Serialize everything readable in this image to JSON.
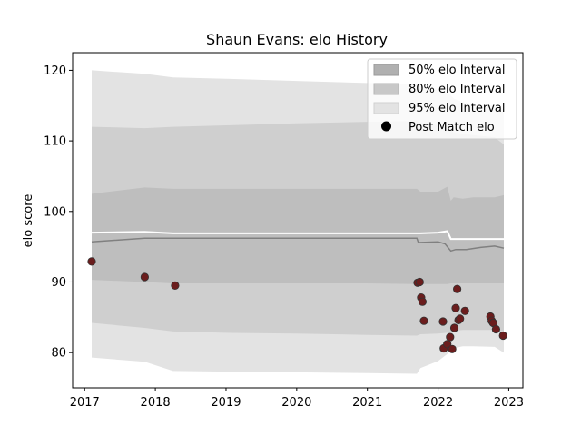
{
  "chart_data": {
    "type": "area",
    "title": "Shaun Evans: elo History",
    "xlabel": "",
    "ylabel": "elo score",
    "xlim": [
      2016.83,
      2023.2
    ],
    "ylim": [
      75,
      122.5
    ],
    "x_ticks": [
      2017,
      2018,
      2019,
      2020,
      2021,
      2022,
      2023
    ],
    "y_ticks": [
      80,
      90,
      100,
      110,
      120
    ],
    "grid": false,
    "legend_position": "top-right",
    "legend": [
      {
        "label": "50% elo Interval",
        "kind": "band",
        "color": "#b0b0b0"
      },
      {
        "label": "80% elo Interval",
        "kind": "band",
        "color": "#c8c8c8"
      },
      {
        "label": "95% elo Interval",
        "kind": "band",
        "color": "#e3e3e3"
      },
      {
        "label": "Post Match elo",
        "kind": "marker",
        "color": "#000000"
      }
    ],
    "colors": {
      "band95": "#e3e3e3",
      "band80": "#cfcfcf",
      "band50": "#bebebe",
      "mean_line": "#808080",
      "median_line": "#ffffff",
      "points": "#6b1d1d"
    },
    "bands": {
      "x": [
        2017.1,
        2017.85,
        2018.25,
        2019.0,
        2020.0,
        2021.0,
        2021.7,
        2021.75,
        2022.0,
        2022.13,
        2022.18,
        2022.22,
        2022.35,
        2022.5,
        2022.8,
        2022.93
      ],
      "p95_upper": [
        120.0,
        119.5,
        119.0,
        118.8,
        118.5,
        118.2,
        118.0,
        117.7,
        117.2,
        117.0,
        116.5,
        116.0,
        115.5,
        115.2,
        115.0,
        114.5
      ],
      "p80_upper": [
        112.0,
        111.8,
        112.0,
        112.2,
        112.5,
        112.7,
        112.8,
        112.6,
        112.2,
        111.8,
        111.5,
        111.2,
        111.0,
        110.8,
        110.5,
        109.5
      ],
      "p50_upper": [
        102.5,
        103.4,
        103.2,
        103.2,
        103.2,
        103.2,
        103.2,
        102.8,
        102.8,
        103.5,
        101.5,
        102.0,
        101.8,
        102.0,
        102.0,
        102.3
      ],
      "p50_lower": [
        90.3,
        90.0,
        89.8,
        89.8,
        89.8,
        89.8,
        89.7,
        89.7,
        89.7,
        89.7,
        89.8,
        89.8,
        89.8,
        89.8,
        89.8,
        89.8
      ],
      "p80_lower": [
        84.2,
        83.5,
        83.0,
        82.8,
        82.7,
        82.5,
        82.4,
        82.6,
        82.7,
        82.8,
        83.0,
        83.1,
        83.2,
        83.2,
        83.2,
        83.0
      ],
      "p95_lower": [
        79.3,
        78.7,
        77.4,
        77.3,
        77.2,
        77.1,
        77.0,
        77.8,
        78.8,
        79.8,
        80.4,
        80.6,
        80.9,
        80.9,
        80.8,
        80.0
      ]
    },
    "mean_line": {
      "x": [
        2017.1,
        2017.85,
        2018.25,
        2019.0,
        2020.0,
        2021.0,
        2021.7,
        2021.72,
        2022.0,
        2022.1,
        2022.18,
        2022.25,
        2022.4,
        2022.6,
        2022.8,
        2022.93
      ],
      "y": [
        95.7,
        96.2,
        96.2,
        96.2,
        96.2,
        96.2,
        96.2,
        95.6,
        95.7,
        95.4,
        94.4,
        94.6,
        94.6,
        94.9,
        95.1,
        94.8
      ]
    },
    "median_line": {
      "x": [
        2017.1,
        2017.85,
        2018.25,
        2019.0,
        2020.0,
        2021.0,
        2021.7,
        2021.75,
        2022.0,
        2022.13,
        2022.18,
        2022.25,
        2022.5,
        2022.93
      ],
      "y": [
        97.0,
        97.1,
        96.9,
        96.9,
        96.9,
        96.9,
        96.9,
        96.9,
        97.0,
        97.2,
        96.1,
        96.1,
        96.1,
        96.1
      ]
    },
    "points": {
      "x": [
        2017.1,
        2017.85,
        2018.28,
        2021.71,
        2021.74,
        2021.76,
        2021.78,
        2021.8,
        2022.07,
        2022.08,
        2022.13,
        2022.17,
        2022.2,
        2022.23,
        2022.25,
        2022.27,
        2022.29,
        2022.31,
        2022.38,
        2022.74,
        2022.76,
        2022.78,
        2022.82,
        2022.92
      ],
      "y": [
        92.9,
        90.7,
        89.5,
        89.9,
        90.0,
        87.8,
        87.2,
        84.5,
        84.4,
        80.6,
        81.2,
        82.2,
        80.5,
        83.5,
        86.3,
        89.0,
        84.6,
        84.8,
        85.9,
        85.1,
        84.5,
        84.2,
        83.3,
        82.4
      ]
    }
  }
}
